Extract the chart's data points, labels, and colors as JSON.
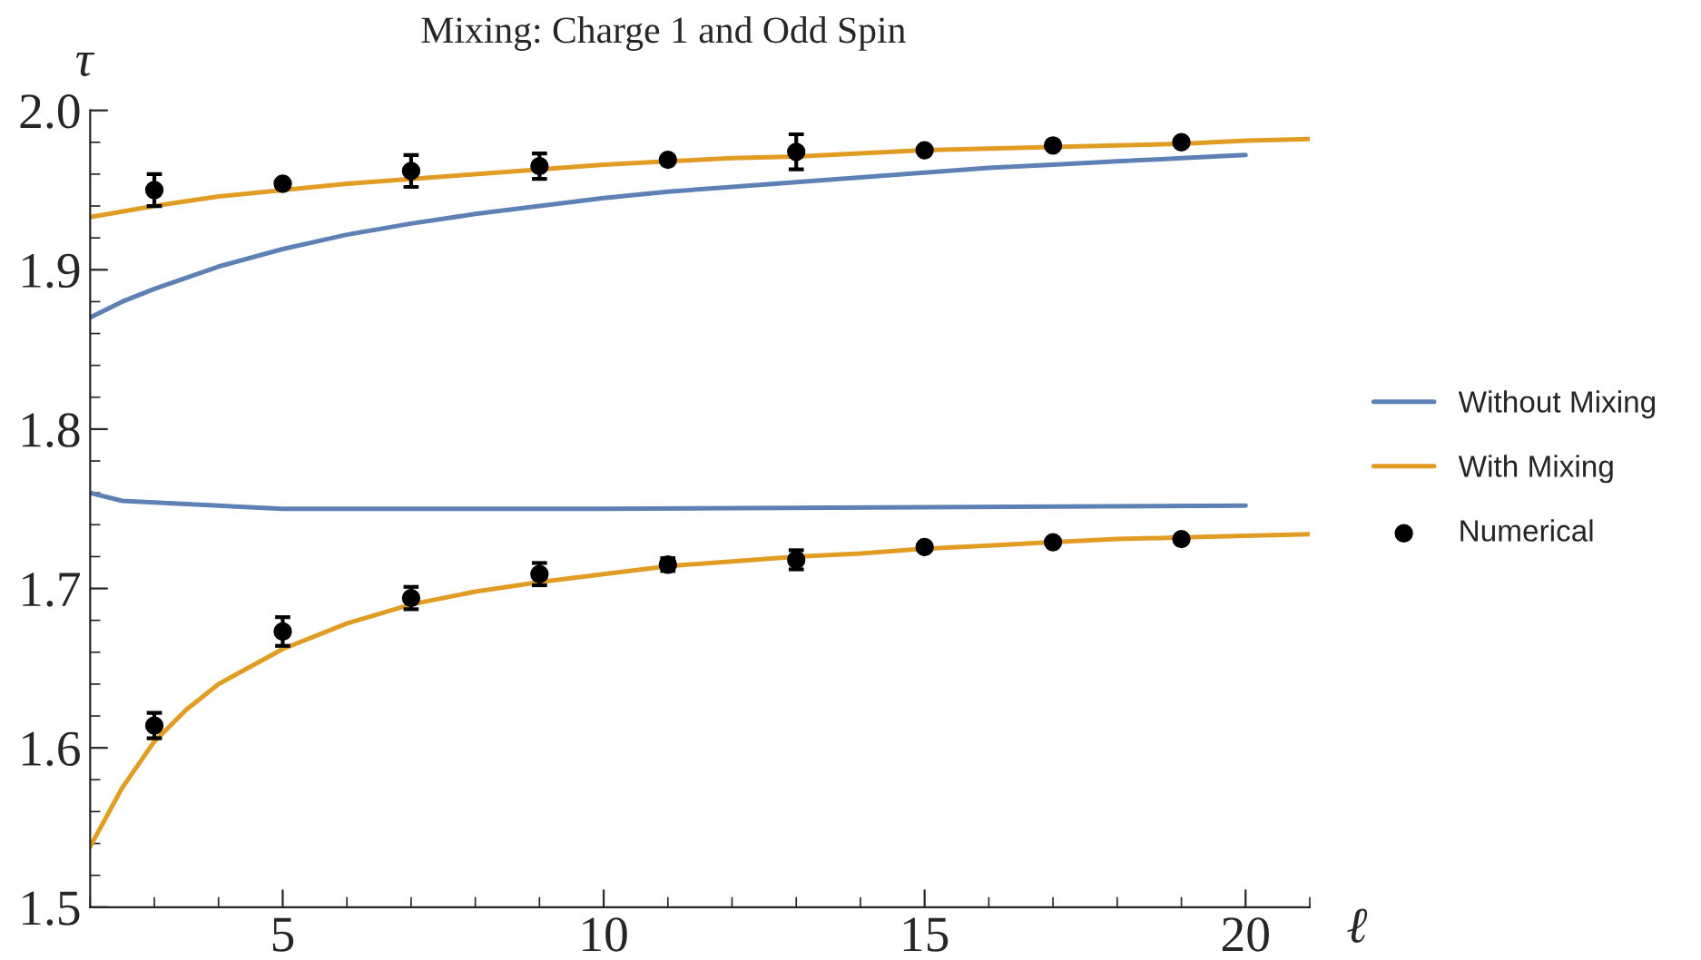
{
  "chart_data": {
    "type": "line",
    "title": "Mixing: Charge 1 and Odd Spin",
    "xlabel": "ℓ",
    "ylabel": "τ",
    "xlim": [
      2,
      21
    ],
    "ylim": [
      1.5,
      2.0
    ],
    "xticks": [
      {
        "value": 2,
        "label": null
      },
      {
        "value": 3,
        "label": null
      },
      {
        "value": 4,
        "label": null
      },
      5,
      {
        "value": 6,
        "label": null
      },
      {
        "value": 7,
        "label": null
      },
      {
        "value": 8,
        "label": null
      },
      {
        "value": 9,
        "label": null
      },
      10,
      {
        "value": 11,
        "label": null
      },
      {
        "value": 12,
        "label": null
      },
      {
        "value": 13,
        "label": null
      },
      {
        "value": 14,
        "label": null
      },
      15,
      {
        "value": 16,
        "label": null
      },
      {
        "value": 17,
        "label": null
      },
      {
        "value": 18,
        "label": null
      },
      {
        "value": 19,
        "label": null
      },
      20,
      {
        "value": 21,
        "label": null
      }
    ],
    "yticks": [
      1.5,
      {
        "value": 1.52,
        "label": null
      },
      {
        "value": 1.54,
        "label": null
      },
      {
        "value": 1.56,
        "label": null
      },
      {
        "value": 1.58,
        "label": null
      },
      1.6,
      {
        "value": 1.62,
        "label": null
      },
      {
        "value": 1.64,
        "label": null
      },
      {
        "value": 1.66,
        "label": null
      },
      {
        "value": 1.68,
        "label": null
      },
      1.7,
      {
        "value": 1.72,
        "label": null
      },
      {
        "value": 1.74,
        "label": null
      },
      {
        "value": 1.76,
        "label": null
      },
      {
        "value": 1.78,
        "label": null
      },
      1.8,
      {
        "value": 1.82,
        "label": null
      },
      {
        "value": 1.84,
        "label": null
      },
      {
        "value": 1.86,
        "label": null
      },
      {
        "value": 1.88,
        "label": null
      },
      1.9,
      {
        "value": 1.92,
        "label": null
      },
      {
        "value": 1.94,
        "label": null
      },
      {
        "value": 1.96,
        "label": null
      },
      {
        "value": 1.98,
        "label": null
      },
      {
        "value": 2.0,
        "label": "2.0"
      }
    ],
    "grid": false,
    "legend": "right",
    "series": [
      {
        "name": "Without Mixing",
        "color": "#5e81b5",
        "x": [
          2,
          2.5,
          3,
          4,
          5,
          6,
          7,
          8,
          9,
          10,
          11,
          12,
          13,
          14,
          15,
          16,
          17,
          18,
          19,
          20
        ],
        "values": [
          1.87,
          1.88,
          1.888,
          1.902,
          1.913,
          1.922,
          1.929,
          1.935,
          1.94,
          1.945,
          1.949,
          1.952,
          1.955,
          1.958,
          1.961,
          1.964,
          1.966,
          1.968,
          1.97,
          1.972
        ]
      },
      {
        "color": "#5e81b5",
        "x": [
          2,
          2.5,
          3,
          4,
          5,
          7,
          10,
          15,
          20
        ],
        "values": [
          1.76,
          1.755,
          1.754,
          1.752,
          1.75,
          1.75,
          1.75,
          1.751,
          1.752
        ]
      },
      {
        "name": "With Mixing",
        "color": "#e19c24",
        "x": [
          2,
          3,
          4,
          5,
          6,
          7,
          8,
          9,
          10,
          11,
          12,
          13,
          14,
          15,
          16,
          17,
          18,
          19,
          20,
          21
        ],
        "values": [
          1.933,
          1.94,
          1.946,
          1.95,
          1.954,
          1.957,
          1.96,
          1.963,
          1.966,
          1.968,
          1.97,
          1.971,
          1.973,
          1.975,
          1.976,
          1.977,
          1.978,
          1.979,
          1.981,
          1.982
        ]
      },
      {
        "color": "#e19c24",
        "x": [
          2,
          2.5,
          3,
          3.5,
          4,
          5,
          6,
          7,
          8,
          9,
          10,
          11,
          12,
          13,
          14,
          15,
          16,
          17,
          18,
          19,
          20,
          21
        ],
        "values": [
          1.538,
          1.575,
          1.604,
          1.624,
          1.64,
          1.662,
          1.678,
          1.69,
          1.698,
          1.704,
          1.709,
          1.714,
          1.717,
          1.72,
          1.722,
          1.725,
          1.727,
          1.729,
          1.731,
          1.732,
          1.733,
          1.734
        ]
      },
      {
        "name": "Numerical",
        "type": "scatter",
        "color": "#000000",
        "marker": "circle",
        "x": [
          3,
          5,
          7,
          9,
          11,
          13,
          15,
          17,
          19,
          3,
          5,
          7,
          9,
          11,
          13,
          15,
          17,
          19
        ],
        "values": [
          1.95,
          1.954,
          1.962,
          1.965,
          1.969,
          1.974,
          1.975,
          1.978,
          1.98,
          1.614,
          1.673,
          1.694,
          1.709,
          1.715,
          1.718,
          1.726,
          1.729,
          1.731
        ],
        "errors": [
          0.01,
          null,
          0.01,
          0.008,
          null,
          0.011,
          null,
          null,
          null,
          0.008,
          0.009,
          0.007,
          0.007,
          0.004,
          0.006,
          null,
          null,
          null
        ]
      }
    ]
  }
}
